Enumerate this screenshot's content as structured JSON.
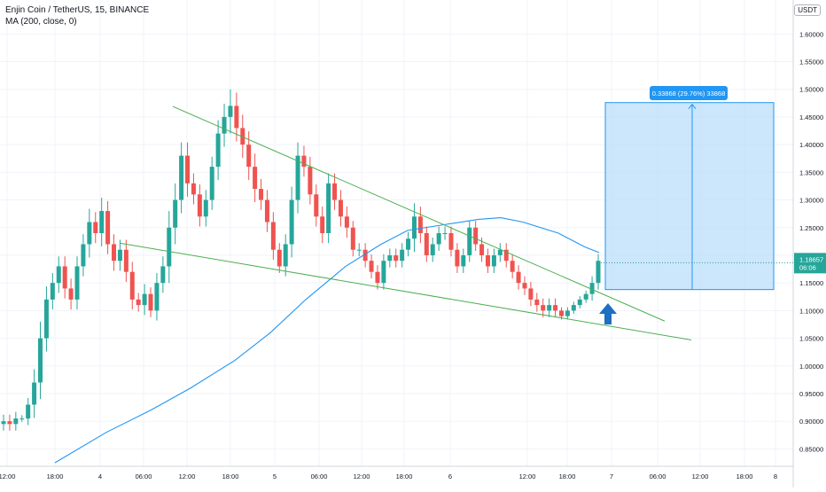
{
  "legend": {
    "symbol": "Enjin Coin / TetherUS, 15, BINANCE",
    "indicator": "MA (200, close, 0)"
  },
  "currency_button": "USDT",
  "colors": {
    "up": "#26a69a",
    "down": "#ef5350",
    "ma": "#2196f3",
    "trendline": "#4caf50",
    "target_box": "#bbdefb",
    "target_border": "#2196f3",
    "price_label": "#26a69a",
    "arrow": "#1e6fc2"
  },
  "price_label": {
    "value": "1.18657",
    "countdown": "06:06"
  },
  "measure_label": "0.33868 (29.76%) 33868",
  "chart_data": {
    "type": "candlestick",
    "title": "Enjin Coin / TetherUS, 15, BINANCE",
    "ylim": [
      0.825,
      1.655
    ],
    "y_ticks": [
      "1.60000",
      "1.55000",
      "1.50000",
      "1.45000",
      "1.40000",
      "1.35000",
      "1.30000",
      "1.25000",
      "1.20000",
      "1.15000",
      "1.10000",
      "1.05000",
      "1.00000",
      "0.95000",
      "0.90000",
      "0.85000"
    ],
    "x_ticks": [
      "12:00",
      "18:00",
      "4",
      "06:00",
      "12:00",
      "18:00",
      "5",
      "06:00",
      "12:00",
      "18:00",
      "6",
      "12:00",
      "18:00",
      "7",
      "06:00",
      "12:00",
      "18:00",
      "8"
    ],
    "grid": true,
    "price_path": [
      [
        0.9,
        0.02
      ],
      [
        0.895,
        0.02
      ],
      [
        0.905,
        0.02
      ],
      [
        0.905,
        0.01
      ],
      [
        0.93,
        0.02
      ],
      [
        0.97,
        0.04
      ],
      [
        1.05,
        0.05
      ],
      [
        1.12,
        0.04
      ],
      [
        1.15,
        0.03
      ],
      [
        1.18,
        0.03
      ],
      [
        1.14,
        0.03
      ],
      [
        1.12,
        0.03
      ],
      [
        1.18,
        0.03
      ],
      [
        1.22,
        0.03
      ],
      [
        1.26,
        0.04
      ],
      [
        1.24,
        0.03
      ],
      [
        1.28,
        0.04
      ],
      [
        1.22,
        0.03
      ],
      [
        1.19,
        0.03
      ],
      [
        1.21,
        0.03
      ],
      [
        1.17,
        0.03
      ],
      [
        1.12,
        0.03
      ],
      [
        1.11,
        0.02
      ],
      [
        1.13,
        0.03
      ],
      [
        1.1,
        0.02
      ],
      [
        1.15,
        0.03
      ],
      [
        1.18,
        0.03
      ],
      [
        1.25,
        0.05
      ],
      [
        1.3,
        0.05
      ],
      [
        1.38,
        0.04
      ],
      [
        1.33,
        0.04
      ],
      [
        1.31,
        0.03
      ],
      [
        1.27,
        0.03
      ],
      [
        1.3,
        0.03
      ],
      [
        1.36,
        0.03
      ],
      [
        1.42,
        0.04
      ],
      [
        1.45,
        0.04
      ],
      [
        1.47,
        0.05
      ],
      [
        1.43,
        0.04
      ],
      [
        1.4,
        0.04
      ],
      [
        1.36,
        0.04
      ],
      [
        1.32,
        0.04
      ],
      [
        1.3,
        0.03
      ],
      [
        1.26,
        0.03
      ],
      [
        1.21,
        0.03
      ],
      [
        1.18,
        0.02
      ],
      [
        1.22,
        0.03
      ],
      [
        1.3,
        0.04
      ],
      [
        1.38,
        0.04
      ],
      [
        1.36,
        0.03
      ],
      [
        1.31,
        0.03
      ],
      [
        1.27,
        0.03
      ],
      [
        1.24,
        0.03
      ],
      [
        1.33,
        0.03
      ],
      [
        1.3,
        0.03
      ],
      [
        1.27,
        0.03
      ],
      [
        1.25,
        0.03
      ],
      [
        1.21,
        0.02
      ],
      [
        1.21,
        0.02
      ],
      [
        1.19,
        0.02
      ],
      [
        1.17,
        0.02
      ],
      [
        1.15,
        0.02
      ],
      [
        1.19,
        0.02
      ],
      [
        1.2,
        0.02
      ],
      [
        1.19,
        0.02
      ],
      [
        1.21,
        0.02
      ],
      [
        1.23,
        0.02
      ],
      [
        1.27,
        0.04
      ],
      [
        1.24,
        0.03
      ],
      [
        1.2,
        0.02
      ],
      [
        1.22,
        0.02
      ],
      [
        1.24,
        0.02
      ],
      [
        1.24,
        0.02
      ],
      [
        1.21,
        0.02
      ],
      [
        1.18,
        0.02
      ],
      [
        1.2,
        0.02
      ],
      [
        1.25,
        0.02
      ],
      [
        1.22,
        0.02
      ],
      [
        1.2,
        0.02
      ],
      [
        1.18,
        0.02
      ],
      [
        1.2,
        0.02
      ],
      [
        1.21,
        0.02
      ],
      [
        1.19,
        0.02
      ],
      [
        1.17,
        0.02
      ],
      [
        1.15,
        0.02
      ],
      [
        1.14,
        0.02
      ],
      [
        1.12,
        0.02
      ],
      [
        1.11,
        0.02
      ],
      [
        1.1,
        0.02
      ],
      [
        1.11,
        0.02
      ],
      [
        1.1,
        0.02
      ],
      [
        1.09,
        0.01
      ],
      [
        1.1,
        0.01
      ],
      [
        1.11,
        0.01
      ],
      [
        1.12,
        0.01
      ],
      [
        1.13,
        0.01
      ],
      [
        1.15,
        0.02
      ],
      [
        1.19,
        0.02
      ]
    ],
    "series": [
      {
        "name": "MA (200, close, 0)",
        "values": [
          [
            0.825,
            62
          ],
          [
            0.88,
            120
          ],
          [
            0.92,
            170
          ],
          [
            0.96,
            215
          ],
          [
            1.01,
            265
          ],
          [
            1.06,
            305
          ],
          [
            1.12,
            345
          ],
          [
            1.18,
            390
          ],
          [
            1.22,
            430
          ],
          [
            1.245,
            460
          ],
          [
            1.255,
            500
          ],
          [
            1.265,
            540
          ],
          [
            1.268,
            565
          ],
          [
            1.26,
            590
          ],
          [
            1.24,
            630
          ],
          [
            1.215,
            660
          ],
          [
            1.205,
            676
          ]
        ]
      }
    ],
    "trendlines": [
      {
        "from": [
          195,
          1.469
        ],
        "to": [
          750,
          1.081
        ]
      },
      {
        "from": [
          135,
          1.222
        ],
        "to": [
          780,
          1.047
        ]
      }
    ],
    "target": {
      "low": 1.138,
      "high": 1.476,
      "change": "0.33868 (29.76%) 33868"
    }
  }
}
